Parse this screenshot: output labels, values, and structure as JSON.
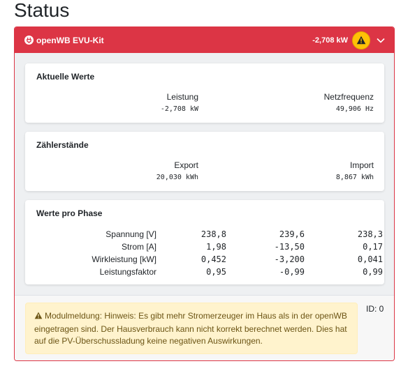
{
  "page": {
    "title": "Status"
  },
  "header": {
    "title": "openWB EVU-Kit",
    "power_value": "-2,708 kW",
    "warning_icon": "warning-icon",
    "toggle_icon": "chevron-down-icon",
    "accent_color": "#dc3545",
    "badge_color": "#ffc107"
  },
  "current_values": {
    "title": "Aktuelle Werte",
    "power": {
      "label": "Leistung",
      "value": "-2,708 kW"
    },
    "frequency": {
      "label": "Netzfrequenz",
      "value": "49,906 Hz"
    }
  },
  "meter_readings": {
    "title": "Zählerstände",
    "export": {
      "label": "Export",
      "value": "20,030 kWh"
    },
    "import": {
      "label": "Import",
      "value": "8,867 kWh"
    }
  },
  "phases": {
    "title": "Werte pro Phase",
    "rows": [
      {
        "label": "Spannung [V]",
        "values": [
          "238,8",
          "239,6",
          "238,3"
        ]
      },
      {
        "label": "Strom [A]",
        "values": [
          "1,98",
          "-13,50",
          "0,17"
        ]
      },
      {
        "label": "Wirkleistung [kW]",
        "values": [
          "0,452",
          "-3,200",
          "0,041"
        ]
      },
      {
        "label": "Leistungsfaktor",
        "values": [
          "0,95",
          "-0,99",
          "0,99"
        ]
      }
    ]
  },
  "footer": {
    "message": "Modulmeldung: Hinweis: Es gibt mehr Stromerzeuger im Haus als in der openWB eingetragen sind. Der Hausverbrauch kann nicht korrekt berechnet werden. Dies hat auf die PV-Überschussladung keine negativen Auswirkungen.",
    "id_label": "ID: 0",
    "alert_color": "#fff3cd"
  }
}
